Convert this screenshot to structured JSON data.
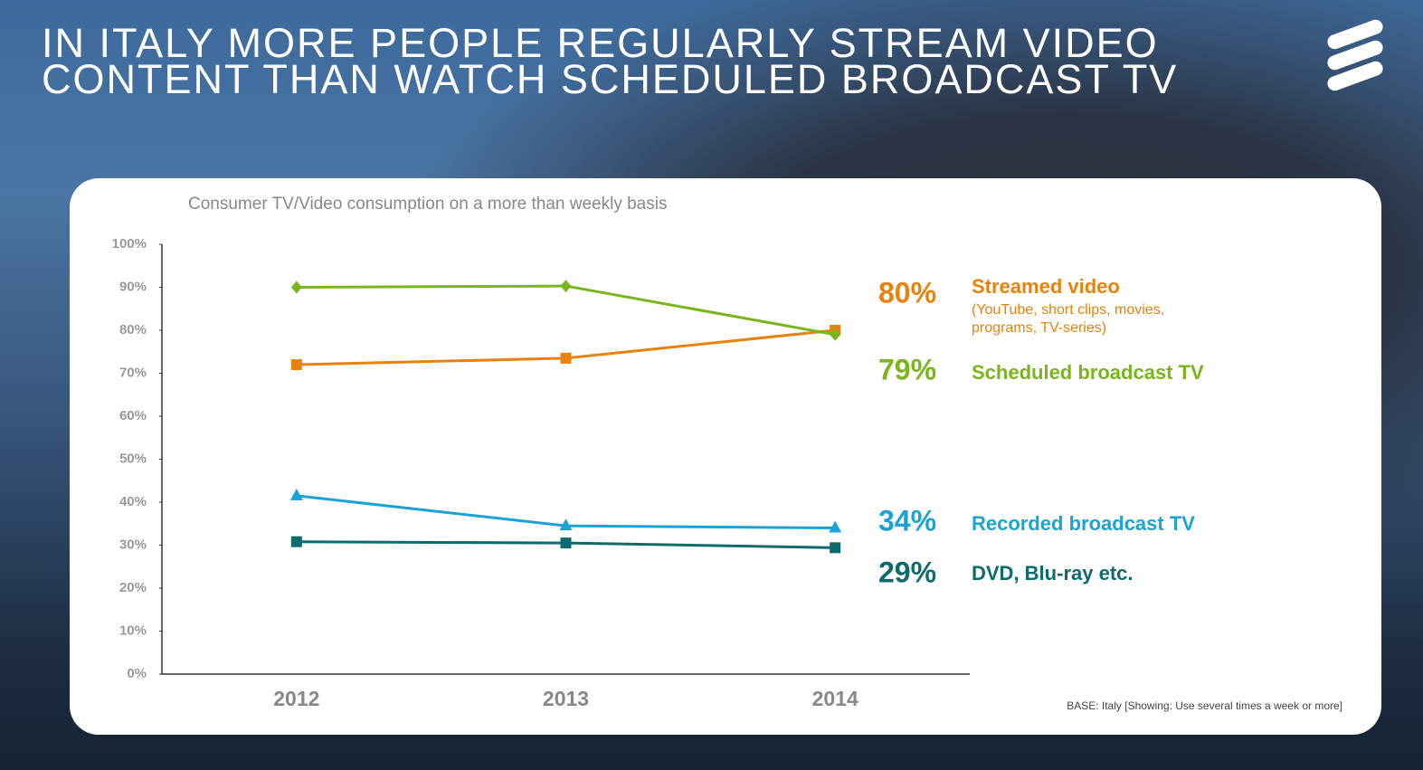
{
  "chart_data": {
    "type": "line",
    "title": [
      "IN ITALY MORE PEOPLE REGULARLY STREAM VIDEO",
      "CONTENT THAN WATCH SCHEDULED BROADCAST TV"
    ],
    "subtitle": "Consumer TV/Video consumption on a more than weekly basis",
    "footnote": "BASE: Italy [Showing: Use several times a week or more]",
    "categories": [
      "2012",
      "2013",
      "2014"
    ],
    "ylim": [
      0,
      100
    ],
    "yticks": [
      {
        "value": 0,
        "label": "0%"
      },
      {
        "value": 10,
        "label": "10%"
      },
      {
        "value": 20,
        "label": "20%"
      },
      {
        "value": 30,
        "label": "30%"
      },
      {
        "value": 40,
        "label": "40%"
      },
      {
        "value": 50,
        "label": "50%"
      },
      {
        "value": 60,
        "label": "60%"
      },
      {
        "value": 70,
        "label": "70%"
      },
      {
        "value": 80,
        "label": "80%"
      },
      {
        "value": 90,
        "label": "90%"
      },
      {
        "value": 100,
        "label": "100%"
      }
    ],
    "series": [
      {
        "name": "Streamed video",
        "note": "(YouTube, short clips, movies, programs, TV-series)",
        "color": "#e8820c",
        "marker": "square",
        "values": [
          72,
          73.5,
          80
        ],
        "value_labels": [
          null,
          null,
          "80%"
        ]
      },
      {
        "name": "Scheduled broadcast TV",
        "color": "#7ab51d",
        "marker": "diamond",
        "values": [
          90,
          90.3,
          79
        ],
        "value_labels": [
          null,
          null,
          "79%"
        ]
      },
      {
        "name": "Recorded broadcast TV",
        "color": "#1aa3d4",
        "marker": "triangle",
        "values": [
          41.5,
          34.5,
          34
        ],
        "value_labels": [
          null,
          null,
          "34%"
        ]
      },
      {
        "name": "DVD, Blu-ray etc.",
        "color": "#0e6b6b",
        "marker": "square",
        "values": [
          30.8,
          30.5,
          29.4
        ],
        "value_labels": [
          null,
          null,
          "29%"
        ]
      }
    ]
  }
}
